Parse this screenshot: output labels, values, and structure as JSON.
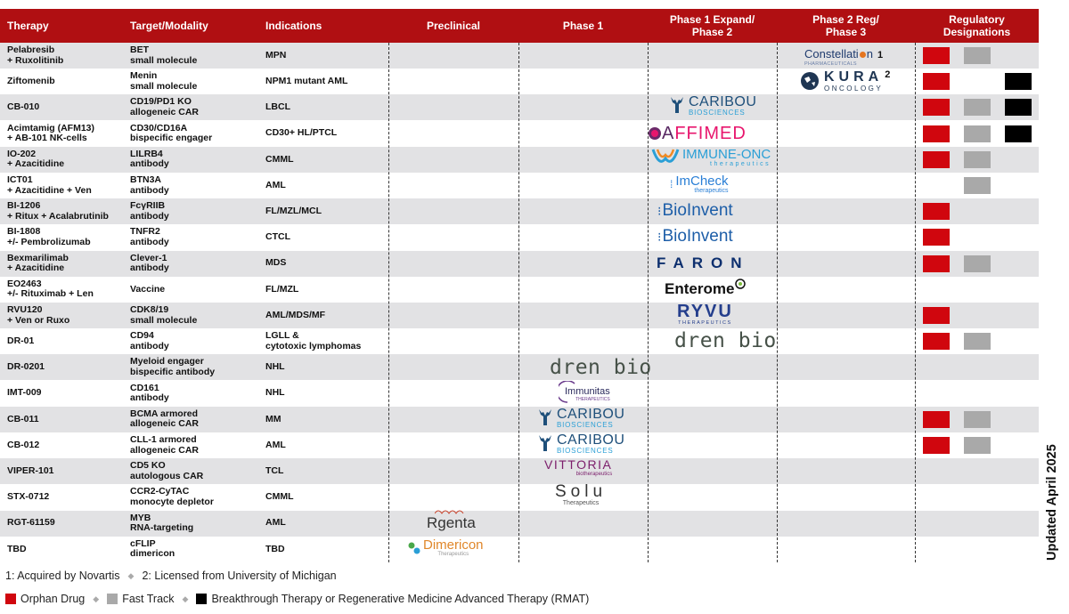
{
  "header": {
    "therapy": "Therapy",
    "target": "Target/Modality",
    "indications": "Indications",
    "preclinical": "Preclinical",
    "phase1": "Phase 1",
    "phase1x_l1": "Phase 1 Expand/",
    "phase1x_l2": "Phase 2",
    "phase2_l1": "Phase 2 Reg/",
    "phase2_l2": "Phase 3",
    "reg_l1": "Regulatory",
    "reg_l2": "Designations"
  },
  "rows": [
    {
      "t1": "Pelabresib",
      "t2": "+ Ruxolitinib",
      "m1": "BET",
      "m2": "small molecule",
      "ind1": "MPN",
      "ind2": ""
    },
    {
      "t1": "Ziftomenib",
      "t2": "",
      "m1": "Menin",
      "m2": "small molecule",
      "ind1": "NPM1 mutant AML",
      "ind2": ""
    },
    {
      "t1": "CB-010",
      "t2": "",
      "m1": "CD19/PD1 KO",
      "m2": "allogeneic CAR",
      "ind1": "LBCL",
      "ind2": ""
    },
    {
      "t1": "Acimtamig (AFM13)",
      "t2": "+ AB-101 NK-cells",
      "m1": "CD30/CD16A",
      "m2": "bispecific engager",
      "ind1": "CD30+ HL/PTCL",
      "ind2": ""
    },
    {
      "t1": "IO-202",
      "t2": "+ Azacitidine",
      "m1": "LILRB4",
      "m2": "antibody",
      "ind1": "CMML",
      "ind2": ""
    },
    {
      "t1": "ICT01",
      "t2": "+ Azacitidine + Ven",
      "m1": "BTN3A",
      "m2": "antibody",
      "ind1": "AML",
      "ind2": ""
    },
    {
      "t1": "BI-1206",
      "t2": "+ Ritux + Acalabrutinib",
      "m1": "FcγRIIB",
      "m2": "antibody",
      "ind1": "FL/MZL/MCL",
      "ind2": ""
    },
    {
      "t1": "BI-1808",
      "t2": "+/- Pembrolizumab",
      "m1": "TNFR2",
      "m2": "antibody",
      "ind1": "CTCL",
      "ind2": ""
    },
    {
      "t1": "Bexmarilimab",
      "t2": "+ Azacitidine",
      "m1": "Clever-1",
      "m2": "antibody",
      "ind1": "MDS",
      "ind2": ""
    },
    {
      "t1": "EO2463",
      "t2": "+/- Rituximab + Len",
      "m1": "Vaccine",
      "m2": "",
      "ind1": "FL/MZL",
      "ind2": ""
    },
    {
      "t1": "RVU120",
      "t2": "+ Ven or Ruxo",
      "m1": "CDK8/19",
      "m2": "small molecule",
      "ind1": "AML/MDS/MF",
      "ind2": ""
    },
    {
      "t1": "DR-01",
      "t2": "",
      "m1": "CD94",
      "m2": "antibody",
      "ind1": "LGLL &",
      "ind2": "cytotoxic lymphomas"
    },
    {
      "t1": "DR-0201",
      "t2": "",
      "m1": "Myeloid engager",
      "m2": "bispecific antibody",
      "ind1": "NHL",
      "ind2": ""
    },
    {
      "t1": "IMT-009",
      "t2": "",
      "m1": "CD161",
      "m2": "antibody",
      "ind1": "NHL",
      "ind2": ""
    },
    {
      "t1": "CB-011",
      "t2": "",
      "m1": "BCMA armored",
      "m2": "allogeneic CAR",
      "ind1": "MM",
      "ind2": ""
    },
    {
      "t1": "CB-012",
      "t2": "",
      "m1": "CLL-1 armored",
      "m2": "allogeneic CAR",
      "ind1": "AML",
      "ind2": ""
    },
    {
      "t1": "VIPER-101",
      "t2": "",
      "m1": "CD5 KO",
      "m2": "autologous CAR",
      "ind1": "TCL",
      "ind2": ""
    },
    {
      "t1": "STX-0712",
      "t2": "",
      "m1": "CCR2-CyTAC",
      "m2": "monocyte depletor",
      "ind1": "CMML",
      "ind2": ""
    },
    {
      "t1": "RGT-61159",
      "t2": "",
      "m1": "MYB",
      "m2": "RNA-targeting",
      "ind1": "AML",
      "ind2": ""
    },
    {
      "t1": "TBD",
      "t2": "",
      "m1": "cFLIP",
      "m2": "dimericon",
      "ind1": "TBD",
      "ind2": ""
    }
  ],
  "designations": [
    [
      "red",
      "gray"
    ],
    [
      "red",
      "",
      "black"
    ],
    [
      "red",
      "gray",
      "black"
    ],
    [
      "red",
      "gray",
      "black"
    ],
    [
      "red",
      "gray"
    ],
    [
      "",
      "gray"
    ],
    [
      "red"
    ],
    [
      "red"
    ],
    [
      "red",
      "gray"
    ],
    [],
    [
      "red"
    ],
    [
      "red",
      "gray"
    ],
    [],
    [],
    [
      "red",
      "gray"
    ],
    [
      "red",
      "gray"
    ],
    [],
    [],
    [],
    []
  ],
  "logos": {
    "constellation": "Constellati",
    "constellation_tail": "n",
    "constellation_sub": "PHARMACEUTICALS",
    "constellation_note": "1",
    "kura": "KURA",
    "kura_sub": "ONCOLOGY",
    "kura_note": "2",
    "caribou": "CARIBOU",
    "caribou_sub": "BIOSCIENCES",
    "affimed_a": "A",
    "affimed_ff": "FFI",
    "affimed_med": "MED",
    "immuneonc": "IMMUNE-ONC",
    "immuneonc_sub": "therapeutics",
    "imcheck": "ImCheck",
    "imcheck_sub": "therapeutics",
    "bioinvent": "BioInvent",
    "faron": "FARON",
    "enterome": "Enterome",
    "ryvu": "RYVU",
    "ryvu_sub": "THERAPEUTICS",
    "drenbio": "dren bio",
    "immunitas": "Immunitas",
    "immunitas_sub": "THERAPEUTICS",
    "vittoria": "VITTORIA",
    "vittoria_sub": "biotherapeutics",
    "solu": "Solu",
    "solu_sub": "Therapeutics",
    "rgenta": "Rgenta",
    "dimericon": "Dimericon",
    "dimericon_sub": "Therapeutics"
  },
  "side_label": "Updated April 2025",
  "footnote": {
    "n1": "1: Acquired by Novartis",
    "n2": "2: Licensed from University of Michigan"
  },
  "legend": {
    "orphan": "Orphan Drug",
    "fast": "Fast Track",
    "breakthrough": "Breakthrough Therapy or Regenerative Medicine Advanced Therapy (RMAT)"
  },
  "colors": {
    "header": "#b00f12",
    "orphan": "#d0060e",
    "fast": "#a9a9a9",
    "breakthrough": "#000000",
    "caribou": "#1e4f7a",
    "caribou_accent": "#2a9fd6",
    "affimed": "#e8166d",
    "bioinvent": "#1d5ea8",
    "faron": "#0d2f6e",
    "ryvu": "#243e8c",
    "drenbio": "#465148",
    "vittoria": "#7b1d6b"
  }
}
